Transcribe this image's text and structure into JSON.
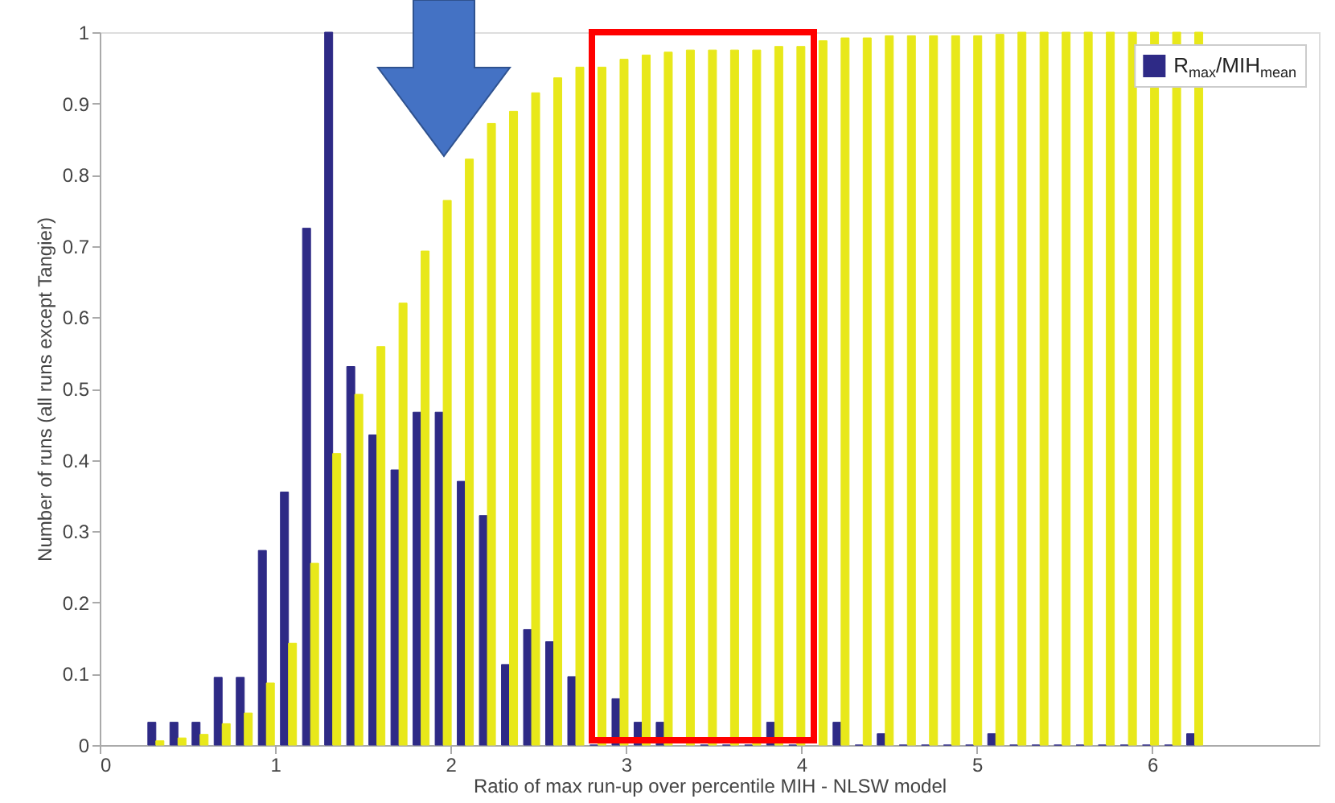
{
  "chart_data": {
    "type": "bar",
    "xlabel": "Ratio of max run-up over percentile MIH - NLSW model",
    "ylabel": "Number of runs (all runs except Tangier)",
    "x": [
      0.32,
      0.446,
      0.572,
      0.698,
      0.824,
      0.95,
      1.076,
      1.202,
      1.328,
      1.454,
      1.58,
      1.706,
      1.832,
      1.958,
      2.084,
      2.21,
      2.336,
      2.462,
      2.588,
      2.714,
      2.84,
      2.966,
      3.092,
      3.218,
      3.344,
      3.47,
      3.596,
      3.722,
      3.848,
      3.974,
      4.1,
      4.226,
      4.352,
      4.478,
      4.604,
      4.73,
      4.856,
      4.982,
      5.108,
      5.234,
      5.36,
      5.486,
      5.612,
      5.738,
      5.864,
      5.99,
      6.116,
      6.242
    ],
    "series": [
      {
        "name": "R$_{max}$/MIH$_{mean}$",
        "color": "#2e2a86",
        "values": [
          0.032,
          0.032,
          0.032,
          0.095,
          0.095,
          0.273,
          0.355,
          0.725,
          1.0,
          0.531,
          0.435,
          0.386,
          0.467,
          0.467,
          0.37,
          0.322,
          0.113,
          0.162,
          0.145,
          0.096,
          0,
          0.065,
          0.032,
          0.032,
          null,
          0,
          0,
          0,
          0.032,
          0,
          null,
          0.032,
          0,
          0.016,
          0,
          0,
          0,
          0,
          0.016,
          0,
          0,
          0,
          0,
          0,
          0,
          0,
          0,
          0.016
        ]
      },
      {
        "color": "#e8e81a",
        "values": [
          0.006,
          0.01,
          0.015,
          0.03,
          0.045,
          0.087,
          0.143,
          0.255,
          0.409,
          0.492,
          0.559,
          0.62,
          0.693,
          0.764,
          0.822,
          0.872,
          0.889,
          0.915,
          0.936,
          0.951,
          0.951,
          0.962,
          0.968,
          0.972,
          0.975,
          0.975,
          0.975,
          0.975,
          0.98,
          0.98,
          0.988,
          0.992,
          0.992,
          0.995,
          0.995,
          0.995,
          0.995,
          0.995,
          0.997,
          1.0,
          1.0,
          1.0,
          1.0,
          1.0,
          1.0,
          1.0,
          1.0,
          1.0
        ]
      }
    ],
    "xlim": [
      0,
      6.95
    ],
    "xticks": [
      0,
      1,
      2,
      3,
      4,
      5,
      6
    ],
    "ylim": [
      0,
      1
    ],
    "yticks": [
      0,
      0.1,
      0.2,
      0.3,
      0.4,
      0.5,
      0.6,
      0.7,
      0.8,
      0.9,
      1
    ],
    "grid": false,
    "legend": "top right"
  }
}
